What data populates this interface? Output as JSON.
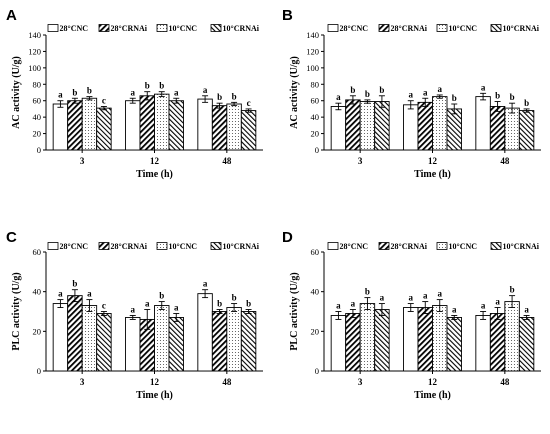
{
  "chart_data": [
    {
      "panel": "A",
      "type": "bar",
      "ylabel": "AC activity (U/g)",
      "xlabel": "Time (h)",
      "ylim": [
        0,
        140
      ],
      "yticks": [
        0,
        20,
        40,
        60,
        80,
        100,
        120,
        140
      ],
      "categories": [
        "3",
        "12",
        "48"
      ],
      "series": [
        {
          "name": "28°CNC",
          "values": [
            56,
            60,
            62
          ],
          "errors": [
            4,
            3,
            4
          ],
          "labels": [
            "a",
            "a",
            "a"
          ]
        },
        {
          "name": "28°CRNAi",
          "values": [
            60,
            66,
            54
          ],
          "errors": [
            3,
            5,
            3
          ],
          "labels": [
            "b",
            "b",
            "b"
          ]
        },
        {
          "name": "10°CNC",
          "values": [
            63,
            68,
            56
          ],
          "errors": [
            2,
            3,
            2
          ],
          "labels": [
            "b",
            "b",
            "b"
          ]
        },
        {
          "name": "10°CRNAi",
          "values": [
            51,
            60,
            48
          ],
          "errors": [
            2,
            3,
            2
          ],
          "labels": [
            "c",
            "a",
            "c"
          ]
        }
      ]
    },
    {
      "panel": "B",
      "type": "bar",
      "ylabel": "AC activity (U/g)",
      "xlabel": "Time (h)",
      "ylim": [
        0,
        140
      ],
      "yticks": [
        0,
        20,
        40,
        60,
        80,
        100,
        120,
        140
      ],
      "categories": [
        "3",
        "12",
        "48"
      ],
      "series": [
        {
          "name": "28°CNC",
          "values": [
            53,
            55,
            65
          ],
          "errors": [
            4,
            5,
            4
          ],
          "labels": [
            "a",
            "a",
            "a"
          ]
        },
        {
          "name": "28°CRNAi",
          "values": [
            61,
            58,
            53
          ],
          "errors": [
            5,
            5,
            6
          ],
          "labels": [
            "b",
            "a",
            "b"
          ]
        },
        {
          "name": "10°CNC",
          "values": [
            59,
            65,
            51
          ],
          "errors": [
            2,
            2,
            6
          ],
          "labels": [
            "b",
            "a",
            "b"
          ]
        },
        {
          "name": "10°CRNAi",
          "values": [
            59,
            50,
            48
          ],
          "errors": [
            7,
            6,
            2
          ],
          "labels": [
            "b",
            "b",
            "b"
          ]
        }
      ]
    },
    {
      "panel": "C",
      "type": "bar",
      "ylabel": "PLC activity (U/g)",
      "xlabel": "Time (h)",
      "ylim": [
        0,
        60
      ],
      "yticks": [
        0,
        20,
        40,
        60
      ],
      "categories": [
        "3",
        "12",
        "48"
      ],
      "series": [
        {
          "name": "28°CNC",
          "values": [
            34,
            27,
            39
          ],
          "errors": [
            2,
            1,
            2
          ],
          "labels": [
            "a",
            "a",
            "a"
          ]
        },
        {
          "name": "28°CRNAi",
          "values": [
            38,
            26,
            30
          ],
          "errors": [
            3,
            5,
            1
          ],
          "labels": [
            "b",
            "a",
            "b"
          ]
        },
        {
          "name": "10°CNC",
          "values": [
            33,
            33,
            32
          ],
          "errors": [
            3,
            2,
            2
          ],
          "labels": [
            "a",
            "b",
            "b"
          ]
        },
        {
          "name": "10°CRNAi",
          "values": [
            29,
            27,
            30
          ],
          "errors": [
            1,
            2,
            1
          ],
          "labels": [
            "c",
            "a",
            "b"
          ]
        }
      ]
    },
    {
      "panel": "D",
      "type": "bar",
      "ylabel": "PLC activity (U/g)",
      "xlabel": "Time (h)",
      "ylim": [
        0,
        60
      ],
      "yticks": [
        0,
        20,
        40,
        60
      ],
      "categories": [
        "3",
        "12",
        "48"
      ],
      "series": [
        {
          "name": "28°CNC",
          "values": [
            28,
            32,
            28
          ],
          "errors": [
            2,
            2,
            2
          ],
          "labels": [
            "a",
            "a",
            "a"
          ]
        },
        {
          "name": "28°CRNAi",
          "values": [
            29,
            32,
            29
          ],
          "errors": [
            2,
            3,
            3
          ],
          "labels": [
            "a",
            "a",
            "a"
          ]
        },
        {
          "name": "10°CNC",
          "values": [
            34,
            33,
            35
          ],
          "errors": [
            3,
            3,
            3
          ],
          "labels": [
            "b",
            "a",
            "b"
          ]
        },
        {
          "name": "10°CRNAi",
          "values": [
            31,
            27,
            27
          ],
          "errors": [
            3,
            1,
            1
          ],
          "labels": [
            "a",
            "a",
            "a"
          ]
        }
      ]
    }
  ]
}
